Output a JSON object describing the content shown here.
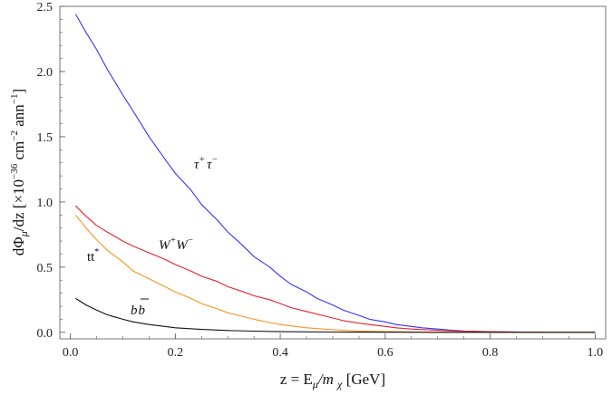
{
  "chart_data": {
    "type": "line",
    "xlabel": "z = E_μ/m_χ [GeV]",
    "xlabel_parts": {
      "prefix": "z = E",
      "sub1": "μ",
      "mid": "/m ",
      "sub2": "χ",
      "suffix": " [GeV]"
    },
    "ylabel": "dΦ_μ/dz [×10^−36 cm^−2 ann^−1]",
    "ylabel_parts": {
      "a": "dΦ",
      "sub": "μ",
      "b": "/dz [×10",
      "sup1": "−36",
      "c": " cm",
      "sup2": "−2",
      "d": " ann",
      "sup3": "−1",
      "e": "]"
    },
    "xlim": [
      -0.02,
      1.02
    ],
    "ylim": [
      -0.05,
      2.5
    ],
    "x_ticks": [
      0.0,
      0.2,
      0.4,
      0.6,
      0.8,
      1.0
    ],
    "x_tick_labels": [
      "0.0",
      "0.2",
      "0.4",
      "0.6",
      "0.8",
      "1.0"
    ],
    "y_ticks": [
      0.0,
      0.5,
      1.0,
      1.5,
      2.0,
      2.5
    ],
    "y_tick_labels": [
      "0.0",
      "0.5",
      "1.0",
      "1.5",
      "2.0",
      "2.5"
    ],
    "grid": false,
    "series": [
      {
        "name": "τ⁺τ⁻",
        "color": "#3333ff",
        "label_parts": {
          "base1": "τ",
          "sup1": "+",
          "base2": "τ",
          "sup2": "−"
        },
        "x": [
          0.01,
          0.03,
          0.05,
          0.07,
          0.1,
          0.13,
          0.15,
          0.18,
          0.2,
          0.23,
          0.25,
          0.28,
          0.3,
          0.33,
          0.35,
          0.38,
          0.4,
          0.42,
          0.45,
          0.47,
          0.5,
          0.52,
          0.55,
          0.57,
          0.6,
          0.62,
          0.65,
          0.67,
          0.7,
          0.72,
          0.75,
          0.8,
          0.85,
          0.9,
          0.95,
          1.0
        ],
        "y": [
          2.44,
          2.3,
          2.17,
          2.02,
          1.82,
          1.63,
          1.5,
          1.33,
          1.22,
          1.09,
          0.98,
          0.86,
          0.77,
          0.66,
          0.58,
          0.5,
          0.43,
          0.37,
          0.31,
          0.26,
          0.21,
          0.17,
          0.13,
          0.1,
          0.08,
          0.06,
          0.045,
          0.035,
          0.025,
          0.018,
          0.01,
          0.005,
          0.003,
          0.001,
          0.0,
          0.0
        ]
      },
      {
        "name": "W⁺W⁻",
        "color": "#e8202a",
        "label_parts": {
          "base1": "W",
          "sup1": "+",
          "base2": "W",
          "sup2": "−"
        },
        "x": [
          0.01,
          0.03,
          0.05,
          0.07,
          0.1,
          0.12,
          0.15,
          0.18,
          0.2,
          0.23,
          0.25,
          0.28,
          0.3,
          0.33,
          0.35,
          0.38,
          0.4,
          0.42,
          0.45,
          0.48,
          0.5,
          0.52,
          0.55,
          0.58,
          0.6,
          0.62,
          0.65,
          0.7,
          0.75,
          0.8,
          0.85,
          0.9,
          0.95,
          1.0
        ],
        "y": [
          0.97,
          0.89,
          0.82,
          0.77,
          0.7,
          0.66,
          0.61,
          0.56,
          0.52,
          0.47,
          0.43,
          0.39,
          0.35,
          0.31,
          0.28,
          0.25,
          0.22,
          0.19,
          0.16,
          0.13,
          0.11,
          0.09,
          0.07,
          0.055,
          0.045,
          0.035,
          0.025,
          0.015,
          0.008,
          0.004,
          0.002,
          0.001,
          0.0,
          0.0
        ]
      },
      {
        "name": "tt*",
        "color": "#f5941e",
        "label_parts": {
          "base1": "tt",
          "sup1": "*",
          "base2": "",
          "sup2": ""
        },
        "x": [
          0.01,
          0.03,
          0.05,
          0.07,
          0.1,
          0.12,
          0.15,
          0.18,
          0.2,
          0.23,
          0.25,
          0.28,
          0.3,
          0.33,
          0.35,
          0.38,
          0.4,
          0.45,
          0.5,
          0.55,
          0.6,
          0.65,
          0.7,
          0.8,
          0.9,
          1.0
        ],
        "y": [
          0.9,
          0.8,
          0.71,
          0.63,
          0.54,
          0.47,
          0.41,
          0.35,
          0.31,
          0.26,
          0.22,
          0.18,
          0.15,
          0.12,
          0.1,
          0.075,
          0.06,
          0.035,
          0.02,
          0.01,
          0.006,
          0.003,
          0.001,
          0.0,
          0.0,
          0.0
        ]
      },
      {
        "name": "bb̄",
        "color": "#111111",
        "label_parts": {
          "base1": "b",
          "sup1": "",
          "base2": "b",
          "sup2": ""
        },
        "x": [
          0.01,
          0.03,
          0.05,
          0.07,
          0.1,
          0.12,
          0.15,
          0.18,
          0.2,
          0.25,
          0.3,
          0.35,
          0.4,
          0.5,
          0.6,
          0.7,
          0.8,
          0.9,
          1.0
        ],
        "y": [
          0.26,
          0.21,
          0.17,
          0.135,
          0.1,
          0.08,
          0.06,
          0.045,
          0.035,
          0.022,
          0.014,
          0.009,
          0.005,
          0.002,
          0.001,
          0.0,
          0.0,
          0.0,
          0.0
        ]
      }
    ]
  }
}
